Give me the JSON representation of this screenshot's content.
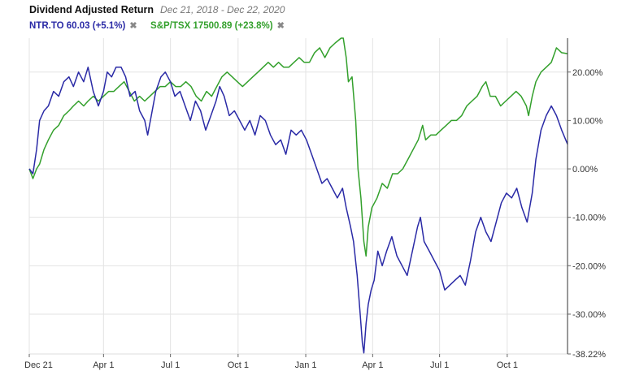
{
  "header": {
    "title": "Dividend Adjusted Return",
    "date_range": "Dec 21, 2018 - Dec 22, 2020",
    "legend": [
      {
        "label": "NTR.TO 60.03 (+5.1%)",
        "color": "#2a2aa6",
        "remove_icon": "close-icon"
      },
      {
        "label": "S&P/TSX 17500.89 (+23.8%)",
        "color": "#33a02c",
        "remove_icon": "close-icon"
      }
    ],
    "remove_glyph": "✖"
  },
  "chart_data": {
    "type": "line",
    "title": "Dividend Adjusted Return",
    "subtitle": "Dec 21, 2018 - Dec 22, 2020",
    "x_ticks": [
      {
        "date": "2018-12-21",
        "label": "Dec 21"
      },
      {
        "date": "2019-04-01",
        "label": "Apr 1"
      },
      {
        "date": "2019-07-01",
        "label": "Jul 1"
      },
      {
        "date": "2019-10-01",
        "label": "Oct 1"
      },
      {
        "date": "2020-01-01",
        "label": "Jan 1"
      },
      {
        "date": "2020-04-01",
        "label": "Apr 1"
      },
      {
        "date": "2020-07-01",
        "label": "Jul 1"
      },
      {
        "date": "2020-10-01",
        "label": "Oct 1"
      }
    ],
    "y_ticks": [
      {
        "value": 20,
        "label": "20.00%"
      },
      {
        "value": 10,
        "label": "10.00%"
      },
      {
        "value": 0,
        "label": "0.00%"
      },
      {
        "value": -10,
        "label": "-10.00%"
      },
      {
        "value": -20,
        "label": "-20.00%"
      },
      {
        "value": -30,
        "label": "-30.00%"
      },
      {
        "value": -38.22,
        "label": "-38.22%"
      }
    ],
    "xlim": [
      "2018-12-21",
      "2020-12-22"
    ],
    "ylim": [
      -38.22,
      27
    ],
    "ylabel": "",
    "xlabel": "",
    "grid": true,
    "legend_position": "top-left",
    "series": [
      {
        "name": "NTR.TO",
        "color": "#2a2aa6",
        "points": [
          [
            "2018-12-21",
            0
          ],
          [
            "2018-12-26",
            -1
          ],
          [
            "2018-12-31",
            4
          ],
          [
            "2019-01-04",
            10
          ],
          [
            "2019-01-10",
            12
          ],
          [
            "2019-01-16",
            13
          ],
          [
            "2019-01-23",
            16
          ],
          [
            "2019-01-30",
            15
          ],
          [
            "2019-02-06",
            18
          ],
          [
            "2019-02-13",
            19
          ],
          [
            "2019-02-19",
            17
          ],
          [
            "2019-02-26",
            20
          ],
          [
            "2019-03-05",
            18
          ],
          [
            "2019-03-11",
            21
          ],
          [
            "2019-03-18",
            16
          ],
          [
            "2019-03-25",
            13
          ],
          [
            "2019-04-01",
            16
          ],
          [
            "2019-04-06",
            20
          ],
          [
            "2019-04-12",
            19
          ],
          [
            "2019-04-18",
            21
          ],
          [
            "2019-04-25",
            21
          ],
          [
            "2019-05-01",
            19
          ],
          [
            "2019-05-07",
            15
          ],
          [
            "2019-05-14",
            16
          ],
          [
            "2019-05-20",
            12
          ],
          [
            "2019-05-27",
            10
          ],
          [
            "2019-05-31",
            7
          ],
          [
            "2019-06-05",
            11
          ],
          [
            "2019-06-11",
            16
          ],
          [
            "2019-06-18",
            19
          ],
          [
            "2019-06-24",
            20
          ],
          [
            "2019-07-01",
            18
          ],
          [
            "2019-07-07",
            15
          ],
          [
            "2019-07-14",
            16
          ],
          [
            "2019-07-21",
            13
          ],
          [
            "2019-07-28",
            10
          ],
          [
            "2019-08-04",
            14
          ],
          [
            "2019-08-11",
            12
          ],
          [
            "2019-08-18",
            8
          ],
          [
            "2019-08-25",
            11
          ],
          [
            "2019-09-01",
            14
          ],
          [
            "2019-09-06",
            17
          ],
          [
            "2019-09-12",
            15
          ],
          [
            "2019-09-19",
            11
          ],
          [
            "2019-09-26",
            12
          ],
          [
            "2019-10-03",
            10
          ],
          [
            "2019-10-10",
            8
          ],
          [
            "2019-10-17",
            10
          ],
          [
            "2019-10-24",
            7
          ],
          [
            "2019-10-31",
            11
          ],
          [
            "2019-11-07",
            10
          ],
          [
            "2019-11-14",
            7
          ],
          [
            "2019-11-21",
            5
          ],
          [
            "2019-11-28",
            6
          ],
          [
            "2019-12-05",
            3
          ],
          [
            "2019-12-12",
            8
          ],
          [
            "2019-12-19",
            7
          ],
          [
            "2019-12-26",
            8
          ],
          [
            "2020-01-02",
            6
          ],
          [
            "2020-01-09",
            3
          ],
          [
            "2020-01-16",
            0
          ],
          [
            "2020-01-23",
            -3
          ],
          [
            "2020-01-30",
            -2
          ],
          [
            "2020-02-06",
            -4
          ],
          [
            "2020-02-13",
            -6
          ],
          [
            "2020-02-20",
            -4
          ],
          [
            "2020-02-25",
            -8
          ],
          [
            "2020-03-02",
            -12
          ],
          [
            "2020-03-06",
            -15
          ],
          [
            "2020-03-11",
            -22
          ],
          [
            "2020-03-15",
            -30
          ],
          [
            "2020-03-18",
            -36
          ],
          [
            "2020-03-20",
            -38
          ],
          [
            "2020-03-23",
            -32
          ],
          [
            "2020-03-26",
            -28
          ],
          [
            "2020-03-30",
            -25
          ],
          [
            "2020-04-03",
            -23
          ],
          [
            "2020-04-08",
            -17
          ],
          [
            "2020-04-14",
            -20
          ],
          [
            "2020-04-20",
            -17
          ],
          [
            "2020-04-27",
            -14
          ],
          [
            "2020-05-04",
            -18
          ],
          [
            "2020-05-11",
            -20
          ],
          [
            "2020-05-18",
            -22
          ],
          [
            "2020-05-25",
            -17
          ],
          [
            "2020-06-01",
            -12
          ],
          [
            "2020-06-05",
            -10
          ],
          [
            "2020-06-10",
            -15
          ],
          [
            "2020-06-17",
            -17
          ],
          [
            "2020-06-24",
            -19
          ],
          [
            "2020-07-01",
            -21
          ],
          [
            "2020-07-08",
            -25
          ],
          [
            "2020-07-15",
            -24
          ],
          [
            "2020-07-22",
            -23
          ],
          [
            "2020-07-29",
            -22
          ],
          [
            "2020-08-05",
            -24
          ],
          [
            "2020-08-12",
            -19
          ],
          [
            "2020-08-19",
            -13
          ],
          [
            "2020-08-26",
            -10
          ],
          [
            "2020-09-02",
            -13
          ],
          [
            "2020-09-09",
            -15
          ],
          [
            "2020-09-16",
            -11
          ],
          [
            "2020-09-23",
            -7
          ],
          [
            "2020-09-30",
            -5
          ],
          [
            "2020-10-07",
            -6
          ],
          [
            "2020-10-14",
            -4
          ],
          [
            "2020-10-21",
            -8
          ],
          [
            "2020-10-28",
            -11
          ],
          [
            "2020-11-04",
            -5
          ],
          [
            "2020-11-09",
            2
          ],
          [
            "2020-11-16",
            8
          ],
          [
            "2020-11-23",
            11
          ],
          [
            "2020-11-30",
            13
          ],
          [
            "2020-12-07",
            11
          ],
          [
            "2020-12-14",
            8
          ],
          [
            "2020-12-22",
            5.1
          ]
        ]
      },
      {
        "name": "S&P/TSX",
        "color": "#33a02c",
        "points": [
          [
            "2018-12-21",
            0
          ],
          [
            "2018-12-26",
            -2
          ],
          [
            "2018-12-31",
            0
          ],
          [
            "2019-01-04",
            1
          ],
          [
            "2019-01-10",
            4
          ],
          [
            "2019-01-16",
            6
          ],
          [
            "2019-01-23",
            8
          ],
          [
            "2019-01-30",
            9
          ],
          [
            "2019-02-06",
            11
          ],
          [
            "2019-02-13",
            12
          ],
          [
            "2019-02-19",
            13
          ],
          [
            "2019-02-26",
            14
          ],
          [
            "2019-03-05",
            13
          ],
          [
            "2019-03-11",
            14
          ],
          [
            "2019-03-18",
            15
          ],
          [
            "2019-03-25",
            14
          ],
          [
            "2019-04-01",
            15
          ],
          [
            "2019-04-08",
            16
          ],
          [
            "2019-04-15",
            16
          ],
          [
            "2019-04-22",
            17
          ],
          [
            "2019-04-29",
            18
          ],
          [
            "2019-05-06",
            16
          ],
          [
            "2019-05-13",
            14
          ],
          [
            "2019-05-20",
            15
          ],
          [
            "2019-05-27",
            14
          ],
          [
            "2019-06-03",
            15
          ],
          [
            "2019-06-10",
            16
          ],
          [
            "2019-06-17",
            17
          ],
          [
            "2019-06-24",
            17
          ],
          [
            "2019-07-01",
            18
          ],
          [
            "2019-07-08",
            17
          ],
          [
            "2019-07-15",
            17
          ],
          [
            "2019-07-22",
            18
          ],
          [
            "2019-07-29",
            17
          ],
          [
            "2019-08-05",
            15
          ],
          [
            "2019-08-12",
            14
          ],
          [
            "2019-08-19",
            16
          ],
          [
            "2019-08-26",
            15
          ],
          [
            "2019-09-02",
            17
          ],
          [
            "2019-09-09",
            19
          ],
          [
            "2019-09-16",
            20
          ],
          [
            "2019-09-23",
            19
          ],
          [
            "2019-09-30",
            18
          ],
          [
            "2019-10-07",
            17
          ],
          [
            "2019-10-14",
            18
          ],
          [
            "2019-10-21",
            19
          ],
          [
            "2019-10-28",
            20
          ],
          [
            "2019-11-04",
            21
          ],
          [
            "2019-11-11",
            22
          ],
          [
            "2019-11-18",
            21
          ],
          [
            "2019-11-25",
            22
          ],
          [
            "2019-12-02",
            21
          ],
          [
            "2019-12-09",
            21
          ],
          [
            "2019-12-16",
            22
          ],
          [
            "2019-12-23",
            23
          ],
          [
            "2019-12-30",
            22
          ],
          [
            "2020-01-06",
            22
          ],
          [
            "2020-01-13",
            24
          ],
          [
            "2020-01-20",
            25
          ],
          [
            "2020-01-27",
            23
          ],
          [
            "2020-02-03",
            25
          ],
          [
            "2020-02-10",
            26
          ],
          [
            "2020-02-18",
            27
          ],
          [
            "2020-02-21",
            27
          ],
          [
            "2020-02-25",
            23
          ],
          [
            "2020-02-28",
            18
          ],
          [
            "2020-03-04",
            19
          ],
          [
            "2020-03-09",
            10
          ],
          [
            "2020-03-12",
            0
          ],
          [
            "2020-03-16",
            -6
          ],
          [
            "2020-03-20",
            -15
          ],
          [
            "2020-03-23",
            -18
          ],
          [
            "2020-03-26",
            -12
          ],
          [
            "2020-03-31",
            -8
          ],
          [
            "2020-04-07",
            -6
          ],
          [
            "2020-04-14",
            -3
          ],
          [
            "2020-04-21",
            -4
          ],
          [
            "2020-04-28",
            -1
          ],
          [
            "2020-05-05",
            -1
          ],
          [
            "2020-05-12",
            0
          ],
          [
            "2020-05-19",
            2
          ],
          [
            "2020-05-26",
            4
          ],
          [
            "2020-06-02",
            6
          ],
          [
            "2020-06-08",
            9
          ],
          [
            "2020-06-12",
            6
          ],
          [
            "2020-06-19",
            7
          ],
          [
            "2020-06-26",
            7
          ],
          [
            "2020-07-03",
            8
          ],
          [
            "2020-07-10",
            9
          ],
          [
            "2020-07-17",
            10
          ],
          [
            "2020-07-24",
            10
          ],
          [
            "2020-07-31",
            11
          ],
          [
            "2020-08-07",
            13
          ],
          [
            "2020-08-14",
            14
          ],
          [
            "2020-08-21",
            15
          ],
          [
            "2020-08-28",
            17
          ],
          [
            "2020-09-02",
            18
          ],
          [
            "2020-09-08",
            15
          ],
          [
            "2020-09-15",
            15
          ],
          [
            "2020-09-22",
            13
          ],
          [
            "2020-09-29",
            14
          ],
          [
            "2020-10-06",
            15
          ],
          [
            "2020-10-13",
            16
          ],
          [
            "2020-10-20",
            15
          ],
          [
            "2020-10-27",
            13
          ],
          [
            "2020-10-30",
            11
          ],
          [
            "2020-11-04",
            15
          ],
          [
            "2020-11-09",
            18
          ],
          [
            "2020-11-16",
            20
          ],
          [
            "2020-11-23",
            21
          ],
          [
            "2020-11-30",
            22
          ],
          [
            "2020-12-07",
            25
          ],
          [
            "2020-12-14",
            24
          ],
          [
            "2020-12-22",
            23.8
          ]
        ]
      }
    ]
  }
}
